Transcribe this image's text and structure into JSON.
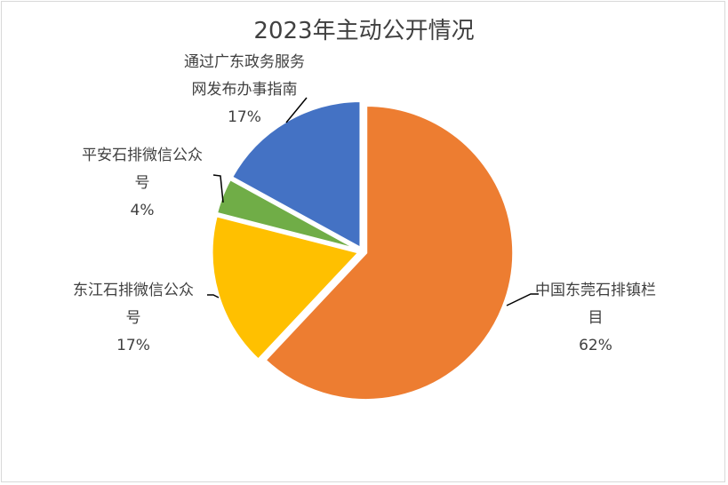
{
  "chart_data": {
    "type": "pie",
    "title": "2023年主动公开情况",
    "slices": [
      {
        "label_lines": [
          "中国东莞石排镇栏",
          "目"
        ],
        "label": "中国东莞石排镇栏目",
        "value": 62,
        "percent_label": "62%",
        "color": "#ED7D31"
      },
      {
        "label_lines": [
          "东江石排微信公众",
          "号"
        ],
        "label": "东江石排微信公众号",
        "value": 17,
        "percent_label": "17%",
        "color": "#FFC000"
      },
      {
        "label_lines": [
          "平安石排微信公众",
          "号"
        ],
        "label": "平安石排微信公众号",
        "value": 4,
        "percent_label": "4%",
        "color": "#70AD47"
      },
      {
        "label_lines": [
          "通过广东政务服务",
          "网发布办事指南"
        ],
        "label": "通过广东政务服务网发布办事指南",
        "value": 17,
        "percent_label": "17%",
        "color": "#4472C4"
      }
    ],
    "start_angle": "12 o'clock",
    "direction": "clockwise",
    "legend": "none",
    "data_labels": "outside with leader lines"
  }
}
